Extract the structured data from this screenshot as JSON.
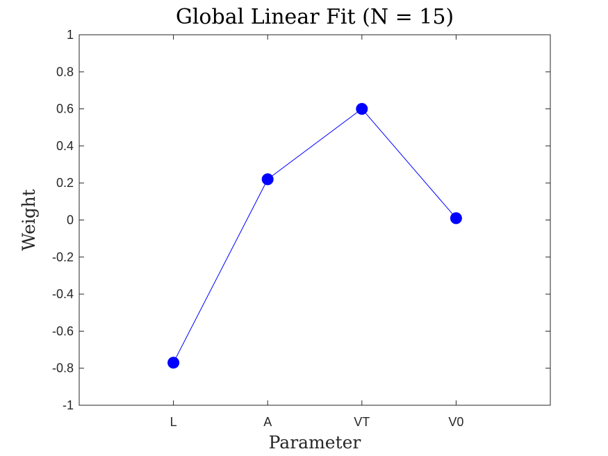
{
  "chart_data": {
    "type": "line",
    "title": "Global Linear Fit (N = 15)",
    "xlabel": "Parameter",
    "ylabel": "Weight",
    "categories": [
      "L",
      "A",
      "VT",
      "V0"
    ],
    "values": [
      -0.77,
      0.22,
      0.6,
      0.01
    ],
    "ylim": [
      -1,
      1
    ],
    "yticks": [
      1,
      0.8,
      0.6,
      0.4,
      0.2,
      0,
      -0.2,
      -0.4,
      -0.6,
      -0.8,
      -1
    ],
    "ytick_labels": [
      "1",
      "0.8",
      "0.6",
      "0.4",
      "0.2",
      "0",
      "-0.2",
      "-0.4",
      "-0.6",
      "-0.8",
      "-1"
    ],
    "grid": false,
    "marker": "filled-circle",
    "series_color": "#0000ff",
    "axis_color": "#262626"
  }
}
